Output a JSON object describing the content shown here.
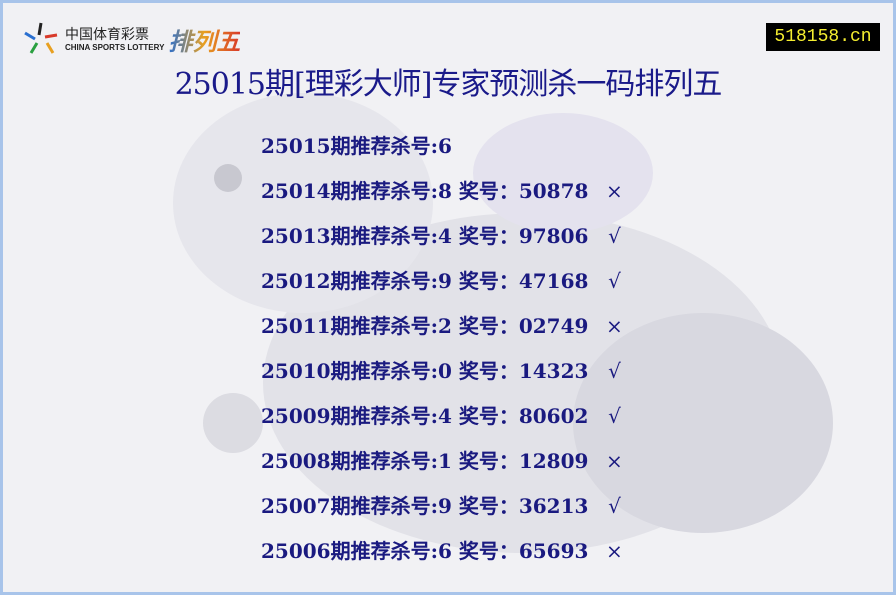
{
  "logo": {
    "cn": "中国体育彩票",
    "en": "CHINA SPORTS LOTTERY",
    "brand": "排列五"
  },
  "site_badge": "518158.cn",
  "title": "25015期[理彩大师]专家预测杀一码排列五",
  "rows": [
    {
      "text": "25015期推荐杀号:6",
      "result": "",
      "mark": ""
    },
    {
      "text": "25014期推荐杀号:8 奖号：",
      "result": "50878",
      "mark": "×"
    },
    {
      "text": "25013期推荐杀号:4 奖号：",
      "result": "97806",
      "mark": "√"
    },
    {
      "text": "25012期推荐杀号:9 奖号：",
      "result": "47168",
      "mark": "√"
    },
    {
      "text": "25011期推荐杀号:2 奖号：",
      "result": "02749",
      "mark": "×"
    },
    {
      "text": "25010期推荐杀号:0 奖号：",
      "result": "14323",
      "mark": "√"
    },
    {
      "text": "25009期推荐杀号:4 奖号：",
      "result": "80602",
      "mark": "√"
    },
    {
      "text": "25008期推荐杀号:1 奖号：",
      "result": "12809",
      "mark": "×"
    },
    {
      "text": "25007期推荐杀号:9 奖号：",
      "result": "36213",
      "mark": "√"
    },
    {
      "text": "25006期推荐杀号:6 奖号：",
      "result": "65693",
      "mark": "×"
    }
  ],
  "colors": {
    "text": "#1a1a80",
    "border": "#a8c4ea",
    "badge_bg": "#000000",
    "badge_text": "#f5ee30"
  }
}
